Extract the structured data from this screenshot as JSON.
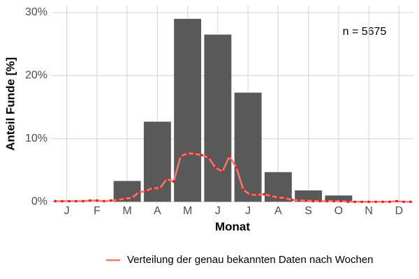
{
  "chart_data": {
    "type": "bar",
    "categories": [
      "J",
      "F",
      "M",
      "A",
      "M",
      "J",
      "J",
      "A",
      "S",
      "O",
      "N",
      "D"
    ],
    "values": [
      0,
      0,
      3.3,
      12.7,
      29.0,
      26.5,
      17.3,
      4.7,
      1.8,
      1.0,
      0,
      0
    ],
    "color": "#595959",
    "x_label": "Monat",
    "y_label": "Anteil Funde [%]",
    "annotation": "n = 5675",
    "ylim": [
      -0.3,
      31.1
    ],
    "yticks": [
      {
        "value": 0,
        "label": "0%"
      },
      {
        "value": 10,
        "label": "10%"
      },
      {
        "value": 20,
        "label": "20%"
      },
      {
        "value": 30,
        "label": "30%"
      }
    ],
    "grid": true,
    "legend_position": "bottom",
    "line": {
      "name": "Verteilung der genau bekannten Daten nach Wochen",
      "color": "#f8766d",
      "point_color": "#e8141c",
      "xlim": [
        0.5,
        52.5
      ],
      "x": [
        1,
        2,
        3,
        4,
        5,
        6,
        7,
        8,
        9,
        10,
        11,
        12,
        13,
        14,
        15,
        16,
        17,
        18,
        19,
        20,
        21,
        22,
        23,
        24,
        25,
        26,
        27,
        28,
        29,
        30,
        31,
        32,
        33,
        34,
        35,
        36,
        37,
        38,
        39,
        40,
        41,
        42,
        43,
        44,
        45,
        46,
        47,
        48,
        49,
        50,
        51,
        52
      ],
      "values": [
        0.1,
        0.1,
        0.1,
        0.1,
        0.1,
        0.2,
        0.2,
        0.1,
        0.2,
        0.3,
        0.5,
        0.6,
        1.5,
        1.7,
        2.2,
        2.1,
        3.6,
        3.2,
        7.2,
        7.7,
        7.6,
        7.4,
        7.0,
        5.4,
        4.8,
        7.2,
        5.4,
        1.9,
        1.1,
        1.1,
        1.2,
        0.9,
        0.7,
        0.6,
        0.3,
        0.2,
        0.2,
        0.1,
        0.1,
        0.1,
        0.1,
        0.1,
        0,
        0,
        0,
        0,
        0,
        0,
        0,
        0.1,
        0,
        0
      ]
    }
  }
}
